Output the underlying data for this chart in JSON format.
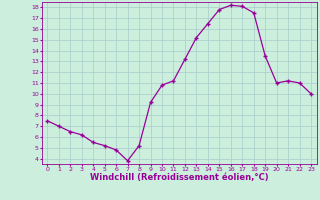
{
  "x": [
    0,
    1,
    2,
    3,
    4,
    5,
    6,
    7,
    8,
    9,
    10,
    11,
    12,
    13,
    14,
    15,
    16,
    17,
    18,
    19,
    20,
    21,
    22,
    23
  ],
  "y": [
    7.5,
    7.0,
    6.5,
    6.2,
    5.5,
    5.2,
    4.8,
    3.8,
    5.2,
    9.2,
    10.8,
    11.2,
    13.2,
    15.2,
    16.5,
    17.8,
    18.2,
    18.1,
    17.5,
    13.5,
    11.0,
    11.2,
    11.0,
    10.0
  ],
  "line_color": "#990099",
  "marker": "+",
  "marker_size": 3,
  "marker_linewidth": 1.0,
  "linewidth": 0.9,
  "xlabel": "Windchill (Refroidissement éolien,°C)",
  "xlabel_fontsize": 6,
  "bg_color": "#cceedd",
  "grid_color": "#aacccc",
  "tick_color": "#990099",
  "label_color": "#990099",
  "ylim": [
    3.5,
    18.5
  ],
  "xlim": [
    -0.5,
    23.5
  ],
  "yticks": [
    4,
    5,
    6,
    7,
    8,
    9,
    10,
    11,
    12,
    13,
    14,
    15,
    16,
    17,
    18
  ],
  "xticks": [
    0,
    1,
    2,
    3,
    4,
    5,
    6,
    7,
    8,
    9,
    10,
    11,
    12,
    13,
    14,
    15,
    16,
    17,
    18,
    19,
    20,
    21,
    22,
    23
  ],
  "xtick_labels": [
    "0",
    "1",
    "2",
    "3",
    "4",
    "5",
    "6",
    "7",
    "8",
    "9",
    "10",
    "11",
    "12",
    "13",
    "14",
    "15",
    "16",
    "17",
    "18",
    "19",
    "20",
    "21",
    "22",
    "23"
  ]
}
